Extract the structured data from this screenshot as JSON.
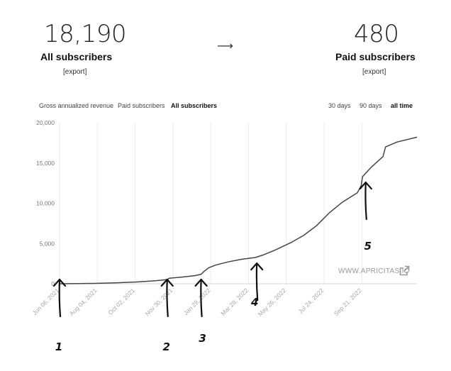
{
  "header": {
    "all_subscribers": {
      "value": "18,190",
      "label": "All subscribers",
      "export": "[export]"
    },
    "paid_subscribers": {
      "value": "480",
      "label": "Paid subscribers",
      "export": "[export]"
    },
    "arrow": "⟶"
  },
  "metric_tabs": [
    {
      "label": "Gross annualized revenue",
      "active": false
    },
    {
      "label": "Paid subscribers",
      "active": false
    },
    {
      "label": "All subscribers",
      "active": true
    }
  ],
  "range_tabs": [
    {
      "label": "30 days",
      "active": false
    },
    {
      "label": "90 days",
      "active": false
    },
    {
      "label": "all time",
      "active": true
    }
  ],
  "watermark": {
    "text": "WWW.APRICITAS.IO",
    "icon": "external-link-icon"
  },
  "chart_data": {
    "type": "line",
    "title": "",
    "xlabel": "",
    "ylabel": "",
    "ylim": [
      0,
      20000
    ],
    "xlim": [
      "2021-06-06",
      "2022-12-16"
    ],
    "y_ticks": [
      0,
      5000,
      10000,
      15000,
      20000
    ],
    "y_tick_labels": [
      "0",
      "5,000",
      "10,000",
      "15,000",
      "20,000"
    ],
    "x_ticks": [
      {
        "date": "2021-06-06",
        "label": "Jun 06, 2021"
      },
      {
        "date": "2021-08-04",
        "label": "Aug 04, 2021"
      },
      {
        "date": "2021-10-02",
        "label": "Oct 02, 2021"
      },
      {
        "date": "2021-11-30",
        "label": "Nov 30, 2021"
      },
      {
        "date": "2022-01-28",
        "label": "Jan 28, 2022"
      },
      {
        "date": "2022-03-28",
        "label": "Mar 28, 2022"
      },
      {
        "date": "2022-05-26",
        "label": "May 26, 2022"
      },
      {
        "date": "2022-07-24",
        "label": "Jul 24, 2022"
      },
      {
        "date": "2022-09-21",
        "label": "Sep 21, 2022"
      }
    ],
    "grid": "vertical",
    "line_color": "#444444",
    "series": [
      {
        "points": [
          [
            "2021-06-06",
            0
          ],
          [
            "2021-07-06",
            15
          ],
          [
            "2021-08-05",
            50
          ],
          [
            "2021-09-04",
            120
          ],
          [
            "2021-10-04",
            220
          ],
          [
            "2021-11-03",
            370
          ],
          [
            "2021-11-21",
            520
          ],
          [
            "2021-11-24",
            680
          ],
          [
            "2021-12-14",
            830
          ],
          [
            "2022-01-03",
            1000
          ],
          [
            "2022-01-13",
            1180
          ],
          [
            "2022-01-17",
            1500
          ],
          [
            "2022-01-25",
            2000
          ],
          [
            "2022-02-06",
            2350
          ],
          [
            "2022-02-26",
            2750
          ],
          [
            "2022-03-18",
            3050
          ],
          [
            "2022-04-07",
            3250
          ],
          [
            "2022-04-21",
            3600
          ],
          [
            "2022-05-09",
            4200
          ],
          [
            "2022-06-02",
            5100
          ],
          [
            "2022-06-22",
            6000
          ],
          [
            "2022-07-12",
            7200
          ],
          [
            "2022-08-01",
            8800
          ],
          [
            "2022-08-21",
            10100
          ],
          [
            "2022-09-14",
            11300
          ],
          [
            "2022-09-20",
            12200
          ],
          [
            "2022-09-22",
            13300
          ],
          [
            "2022-10-06",
            14500
          ],
          [
            "2022-10-24",
            15800
          ],
          [
            "2022-10-28",
            17000
          ],
          [
            "2022-11-15",
            17600
          ],
          [
            "2022-12-16",
            18200
          ]
        ]
      }
    ],
    "annotations": [
      {
        "label": "1",
        "date": "2021-06-06"
      },
      {
        "label": "2",
        "date": "2021-11-21"
      },
      {
        "label": "3",
        "date": "2022-01-13"
      },
      {
        "label": "4",
        "date": "2022-04-10"
      },
      {
        "label": "5",
        "date": "2022-09-27"
      }
    ]
  }
}
